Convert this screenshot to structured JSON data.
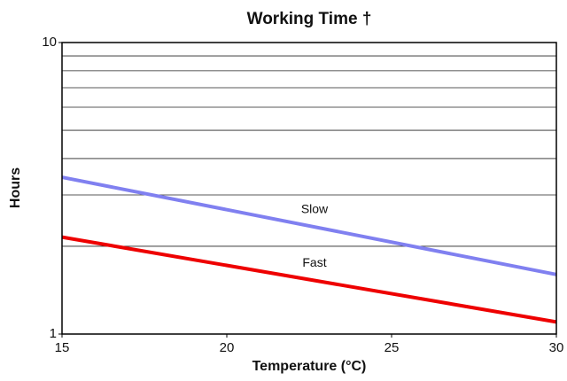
{
  "chart_data": {
    "type": "line",
    "title": "Working Time †",
    "x_label": "Temperature (°C)",
    "y_label": "Hours",
    "x": [
      15,
      30
    ],
    "series": [
      {
        "name": "Slow",
        "color": "#8080f0",
        "values": [
          3.45,
          1.6
        ]
      },
      {
        "name": "Fast",
        "color": "#ee0000",
        "values": [
          2.15,
          1.1
        ]
      }
    ],
    "xlim": [
      15,
      30
    ],
    "xticks": [
      15,
      20,
      25,
      30
    ],
    "ylim": [
      1,
      10
    ],
    "yticks": [
      1,
      10
    ],
    "y_log": true,
    "y_minor_grid": [
      2,
      3,
      4,
      5,
      6,
      7,
      8,
      9
    ],
    "grid": true
  }
}
